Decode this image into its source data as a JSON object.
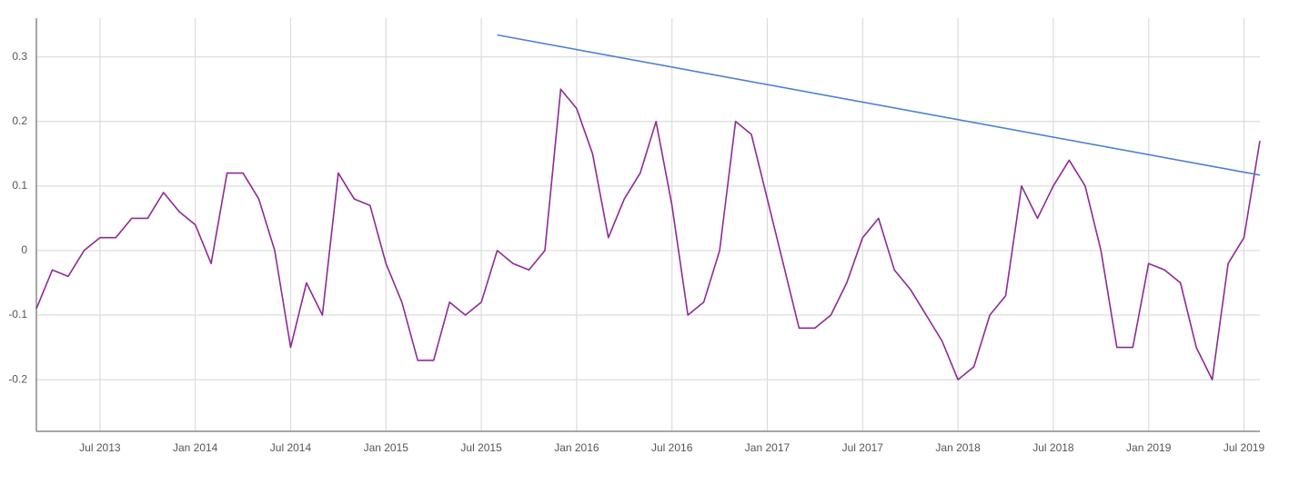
{
  "chart_data": {
    "type": "line",
    "x": [
      "2013-03",
      "2013-04",
      "2013-05",
      "2013-06",
      "2013-07",
      "2013-08",
      "2013-09",
      "2013-10",
      "2013-11",
      "2013-12",
      "2014-01",
      "2014-02",
      "2014-03",
      "2014-04",
      "2014-05",
      "2014-06",
      "2014-07",
      "2014-08",
      "2014-09",
      "2014-10",
      "2014-11",
      "2014-12",
      "2015-01",
      "2015-02",
      "2015-03",
      "2015-04",
      "2015-05",
      "2015-06",
      "2015-07",
      "2015-08",
      "2015-09",
      "2015-10",
      "2015-11",
      "2015-12",
      "2016-01",
      "2016-02",
      "2016-03",
      "2016-04",
      "2016-05",
      "2016-06",
      "2016-07",
      "2016-08",
      "2016-09",
      "2016-10",
      "2016-11",
      "2016-12",
      "2017-01",
      "2017-02",
      "2017-03",
      "2017-04",
      "2017-05",
      "2017-06",
      "2017-07",
      "2017-08",
      "2017-09",
      "2017-10",
      "2017-11",
      "2017-12",
      "2018-01",
      "2018-02",
      "2018-03",
      "2018-04",
      "2018-05",
      "2018-06",
      "2018-07",
      "2018-08",
      "2018-09",
      "2018-10",
      "2018-11",
      "2018-12",
      "2019-01",
      "2019-02",
      "2019-03",
      "2019-04",
      "2019-05",
      "2019-06",
      "2019-07",
      "2019-08"
    ],
    "series": [
      {
        "color": "#8e2a96",
        "values": [
          -0.09,
          -0.03,
          -0.04,
          0.0,
          0.02,
          0.02,
          0.05,
          0.05,
          0.09,
          0.06,
          0.04,
          -0.02,
          0.12,
          0.12,
          0.08,
          0.0,
          -0.15,
          -0.05,
          -0.1,
          0.12,
          0.08,
          0.07,
          -0.02,
          -0.08,
          -0.17,
          -0.17,
          -0.08,
          -0.1,
          -0.08,
          0.0,
          -0.02,
          -0.03,
          0.0,
          0.25,
          0.22,
          0.15,
          0.02,
          0.08,
          0.12,
          0.2,
          0.07,
          -0.1,
          -0.08,
          0.0,
          0.2,
          0.18,
          0.08,
          -0.02,
          -0.12,
          -0.12,
          -0.1,
          -0.05,
          0.02,
          0.05,
          -0.03,
          -0.06,
          -0.1,
          -0.14,
          -0.2,
          -0.18,
          -0.1,
          -0.07,
          0.1,
          0.05,
          0.1,
          0.14,
          0.1,
          0.0,
          -0.15,
          -0.15,
          -0.02,
          -0.03,
          -0.05,
          -0.15,
          -0.2,
          -0.02,
          0.02,
          0.17
        ]
      }
    ],
    "trendline": {
      "color": "#4f7fd0",
      "x": [
        "2015-08",
        "2019-08"
      ],
      "values": [
        0.334,
        0.117
      ]
    },
    "xlim": [
      "2013-03",
      "2019-08"
    ],
    "xticks": [
      {
        "value": "2013-07",
        "label": "Jul 2013"
      },
      {
        "value": "2014-01",
        "label": "Jan 2014"
      },
      {
        "value": "2014-07",
        "label": "Jul 2014"
      },
      {
        "value": "2015-01",
        "label": "Jan 2015"
      },
      {
        "value": "2015-07",
        "label": "Jul 2015"
      },
      {
        "value": "2016-01",
        "label": "Jan 2016"
      },
      {
        "value": "2016-07",
        "label": "Jul 2016"
      },
      {
        "value": "2017-01",
        "label": "Jan 2017"
      },
      {
        "value": "2017-07",
        "label": "Jul 2017"
      },
      {
        "value": "2018-01",
        "label": "Jan 2018"
      },
      {
        "value": "2018-07",
        "label": "Jul 2018"
      },
      {
        "value": "2019-01",
        "label": "Jan 2019"
      },
      {
        "value": "2019-07",
        "label": "Jul 2019"
      }
    ],
    "ylim": [
      -0.28,
      0.36
    ],
    "yticks": [
      -0.2,
      -0.1,
      0,
      0.1,
      0.2,
      0.3
    ],
    "grid": true
  }
}
